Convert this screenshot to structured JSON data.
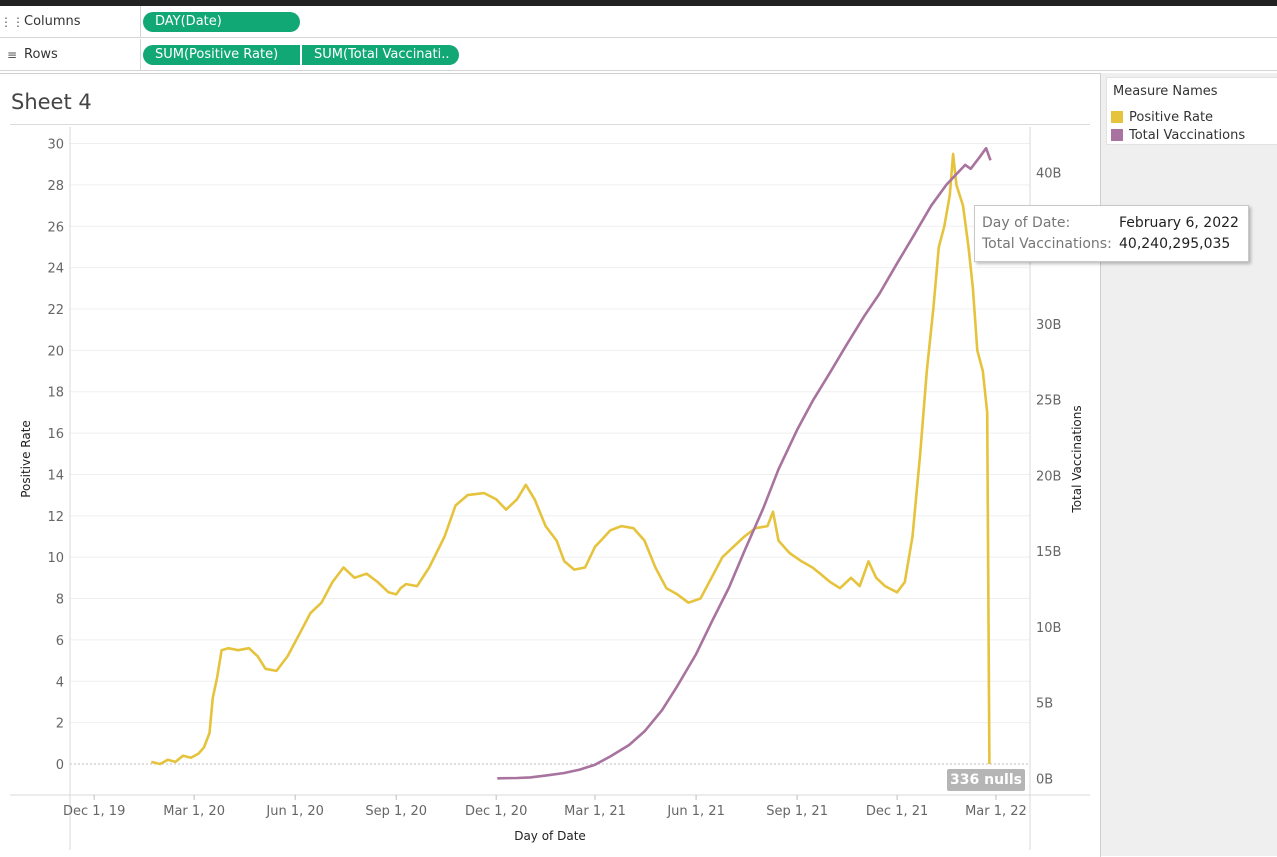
{
  "shelves": {
    "columns": {
      "label": "Columns",
      "icon": "columns-icon",
      "pills": [
        "DAY(Date)"
      ]
    },
    "rows": {
      "label": "Rows",
      "icon": "rows-icon",
      "pills": [
        "SUM(Positive Rate)",
        "SUM(Total Vaccinati.."
      ]
    }
  },
  "sheet": {
    "title": "Sheet 4"
  },
  "legend": {
    "title": "Measure Names",
    "items": [
      {
        "label": "Positive Rate",
        "color": "#e6c33d"
      },
      {
        "label": "Total Vaccinations",
        "color": "#a8739e"
      }
    ]
  },
  "tooltip": {
    "date_key": "Day of Date:",
    "date_value": "February 6, 2022",
    "vacc_key": "Total Vaccinations:",
    "vacc_value": "40,240,295,035"
  },
  "nulls_label": "336 nulls",
  "chart_data": {
    "type": "line",
    "xlabel": "Day of Date",
    "ylabel": "Positive Rate",
    "y2label": "Total Vaccinations",
    "x_ticks": [
      "Dec 1, 19",
      "Mar 1, 20",
      "Jun 1, 20",
      "Sep 1, 20",
      "Dec 1, 20",
      "Mar 1, 21",
      "Jun 1, 21",
      "Sep 1, 21",
      "Dec 1, 21",
      "Mar 1, 22"
    ],
    "x_range": [
      "2019-11-09",
      "2022-04-01"
    ],
    "y_ticks": [
      0,
      2,
      4,
      6,
      8,
      10,
      12,
      14,
      16,
      18,
      20,
      22,
      24,
      26,
      28,
      30
    ],
    "y_range": [
      -1.5,
      30.8
    ],
    "y2_ticks": [
      "0B",
      "5B",
      "10B",
      "15B",
      "20B",
      "25B",
      "30B",
      "35B",
      "40B"
    ],
    "y2_range_billions": [
      -1.1,
      43.0
    ],
    "series": [
      {
        "name": "Positive Rate",
        "axis": "left",
        "color": "#e6c33d",
        "points": [
          [
            "2020-01-22",
            0.1
          ],
          [
            "2020-01-30",
            0.0
          ],
          [
            "2020-02-06",
            0.2
          ],
          [
            "2020-02-13",
            0.1
          ],
          [
            "2020-02-20",
            0.4
          ],
          [
            "2020-02-27",
            0.3
          ],
          [
            "2020-03-05",
            0.5
          ],
          [
            "2020-03-10",
            0.8
          ],
          [
            "2020-03-15",
            1.5
          ],
          [
            "2020-03-18",
            3.2
          ],
          [
            "2020-03-22",
            4.2
          ],
          [
            "2020-03-26",
            5.5
          ],
          [
            "2020-04-01",
            5.6
          ],
          [
            "2020-04-10",
            5.5
          ],
          [
            "2020-04-20",
            5.6
          ],
          [
            "2020-04-28",
            5.2
          ],
          [
            "2020-05-05",
            4.6
          ],
          [
            "2020-05-15",
            4.5
          ],
          [
            "2020-05-25",
            5.2
          ],
          [
            "2020-06-05",
            6.3
          ],
          [
            "2020-06-15",
            7.3
          ],
          [
            "2020-06-25",
            7.8
          ],
          [
            "2020-07-05",
            8.8
          ],
          [
            "2020-07-15",
            9.5
          ],
          [
            "2020-07-25",
            9.0
          ],
          [
            "2020-08-05",
            9.2
          ],
          [
            "2020-08-15",
            8.8
          ],
          [
            "2020-08-25",
            8.3
          ],
          [
            "2020-09-01",
            8.2
          ],
          [
            "2020-09-05",
            8.5
          ],
          [
            "2020-09-10",
            8.7
          ],
          [
            "2020-09-20",
            8.6
          ],
          [
            "2020-10-01",
            9.5
          ],
          [
            "2020-10-15",
            11.0
          ],
          [
            "2020-10-25",
            12.5
          ],
          [
            "2020-11-05",
            13.0
          ],
          [
            "2020-11-20",
            13.1
          ],
          [
            "2020-12-01",
            12.8
          ],
          [
            "2020-12-10",
            12.3
          ],
          [
            "2020-12-20",
            12.8
          ],
          [
            "2020-12-28",
            13.5
          ],
          [
            "2021-01-05",
            12.8
          ],
          [
            "2021-01-15",
            11.5
          ],
          [
            "2021-01-25",
            10.8
          ],
          [
            "2021-02-01",
            9.8
          ],
          [
            "2021-02-10",
            9.4
          ],
          [
            "2021-02-20",
            9.5
          ],
          [
            "2021-03-01",
            10.5
          ],
          [
            "2021-03-08",
            10.9
          ],
          [
            "2021-03-15",
            11.3
          ],
          [
            "2021-03-25",
            11.5
          ],
          [
            "2021-04-05",
            11.4
          ],
          [
            "2021-04-15",
            10.8
          ],
          [
            "2021-04-25",
            9.5
          ],
          [
            "2021-05-05",
            8.5
          ],
          [
            "2021-05-15",
            8.2
          ],
          [
            "2021-05-25",
            7.8
          ],
          [
            "2021-06-05",
            8.0
          ],
          [
            "2021-06-15",
            9.0
          ],
          [
            "2021-06-25",
            10.0
          ],
          [
            "2021-07-05",
            10.5
          ],
          [
            "2021-07-15",
            11.0
          ],
          [
            "2021-07-25",
            11.4
          ],
          [
            "2021-08-05",
            11.5
          ],
          [
            "2021-08-10",
            12.2
          ],
          [
            "2021-08-15",
            10.8
          ],
          [
            "2021-08-25",
            10.2
          ],
          [
            "2021-09-05",
            9.8
          ],
          [
            "2021-09-15",
            9.5
          ],
          [
            "2021-09-22",
            9.2
          ],
          [
            "2021-10-01",
            8.8
          ],
          [
            "2021-10-10",
            8.5
          ],
          [
            "2021-10-20",
            9.0
          ],
          [
            "2021-10-28",
            8.6
          ],
          [
            "2021-11-05",
            9.8
          ],
          [
            "2021-11-12",
            9.0
          ],
          [
            "2021-11-20",
            8.6
          ],
          [
            "2021-12-01",
            8.3
          ],
          [
            "2021-12-08",
            8.8
          ],
          [
            "2021-12-15",
            11.0
          ],
          [
            "2021-12-22",
            15.0
          ],
          [
            "2021-12-28",
            19.0
          ],
          [
            "2022-01-03",
            22.0
          ],
          [
            "2022-01-08",
            25.0
          ],
          [
            "2022-01-13",
            26.0
          ],
          [
            "2022-01-18",
            27.5
          ],
          [
            "2022-01-21",
            29.5
          ],
          [
            "2022-01-24",
            28.0
          ],
          [
            "2022-01-30",
            27.0
          ],
          [
            "2022-02-04",
            25.0
          ],
          [
            "2022-02-08",
            23.0
          ],
          [
            "2022-02-12",
            20.0
          ],
          [
            "2022-02-17",
            19.0
          ],
          [
            "2022-02-21",
            17.0
          ],
          [
            "2022-02-23",
            0.0
          ]
        ]
      },
      {
        "name": "Total Vaccinations",
        "axis": "right",
        "color": "#a8739e",
        "points": [
          [
            "2020-12-02",
            0.0
          ],
          [
            "2020-12-20",
            0.02
          ],
          [
            "2021-01-01",
            0.06
          ],
          [
            "2021-01-15",
            0.18
          ],
          [
            "2021-02-01",
            0.35
          ],
          [
            "2021-02-15",
            0.58
          ],
          [
            "2021-03-01",
            0.9
          ],
          [
            "2021-03-15",
            1.45
          ],
          [
            "2021-04-01",
            2.2
          ],
          [
            "2021-04-15",
            3.1
          ],
          [
            "2021-05-01",
            4.5
          ],
          [
            "2021-05-15",
            6.1
          ],
          [
            "2021-06-01",
            8.2
          ],
          [
            "2021-06-15",
            10.3
          ],
          [
            "2021-07-01",
            12.6
          ],
          [
            "2021-07-15",
            15.0
          ],
          [
            "2021-08-01",
            17.8
          ],
          [
            "2021-08-15",
            20.4
          ],
          [
            "2021-09-01",
            23.0
          ],
          [
            "2021-09-15",
            24.9
          ],
          [
            "2021-10-01",
            26.8
          ],
          [
            "2021-10-15",
            28.5
          ],
          [
            "2021-11-01",
            30.5
          ],
          [
            "2021-11-15",
            32.0
          ],
          [
            "2021-12-01",
            34.0
          ],
          [
            "2021-12-15",
            35.7
          ],
          [
            "2022-01-01",
            37.8
          ],
          [
            "2022-01-15",
            39.2
          ],
          [
            "2022-02-01",
            40.5
          ],
          [
            "2022-02-06",
            40.24
          ],
          [
            "2022-02-14",
            41.0
          ],
          [
            "2022-02-20",
            41.6
          ],
          [
            "2022-02-24",
            40.8
          ]
        ]
      }
    ]
  }
}
